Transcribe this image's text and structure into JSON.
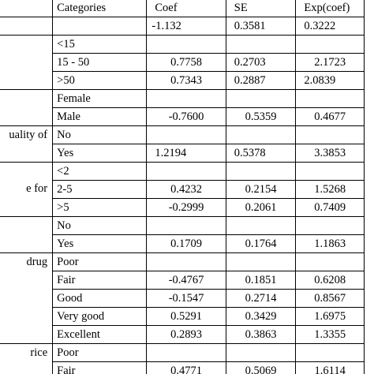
{
  "header": {
    "categories": "Categories",
    "coef": "Coef",
    "se": "SE",
    "exp_coef": "Exp(coef)"
  },
  "intercept": {
    "coef": "-1.132",
    "se": "0.3581",
    "exp": "0.3222"
  },
  "age_group": {
    "rows": [
      {
        "category": "<15",
        "coef": "",
        "se": "",
        "exp": ""
      },
      {
        "category": "15 - 50",
        "coef": "0.7758",
        "se": "0.2703",
        "exp": "2.1723"
      },
      {
        "category": ">50",
        "coef": "0.7343",
        "se": "0.2887",
        "exp": "2.0839"
      }
    ]
  },
  "sex": {
    "rows": [
      {
        "category": "Female",
        "coef": "",
        "se": "",
        "exp": ""
      },
      {
        "category": "Male",
        "coef": "-0.7600",
        "se": "0.5359",
        "exp": "0.4677"
      }
    ]
  },
  "quality": {
    "label_line": "uality  of",
    "rows": [
      {
        "category": "No",
        "coef": "",
        "se": "",
        "exp": ""
      },
      {
        "category": "Yes",
        "coef": "1.2194",
        "se": "0.5378",
        "exp": "3.3853"
      }
    ]
  },
  "time_for": {
    "label_line": "e       for",
    "rows": [
      {
        "category": "<2",
        "coef": "",
        "se": "",
        "exp": ""
      },
      {
        "category": "2-5",
        "coef": "0.4232",
        "se": "0.2154",
        "exp": "1.5268"
      },
      {
        "category": ">5",
        "coef": "-0.2999",
        "se": "0.2061",
        "exp": "0.7409"
      }
    ]
  },
  "binary_var": {
    "rows": [
      {
        "category": "No",
        "coef": "",
        "se": "",
        "exp": ""
      },
      {
        "category": "Yes",
        "coef": "0.1709",
        "se": "0.1764",
        "exp": "1.1863"
      }
    ]
  },
  "drug": {
    "label_line": "drug",
    "rows": [
      {
        "category": "Poor",
        "coef": "",
        "se": "",
        "exp": ""
      },
      {
        "category": "Fair",
        "coef": "-0.4767",
        "se": "0.1851",
        "exp": "0.6208"
      },
      {
        "category": "Good",
        "coef": "-0.1547",
        "se": "0.2714",
        "exp": "0.8567"
      },
      {
        "category": "Very good",
        "coef": "0.5291",
        "se": "0.3429",
        "exp": "1.6975"
      },
      {
        "category": "Excellent",
        "coef": "0.2893",
        "se": "0.3863",
        "exp": "1.3355"
      }
    ]
  },
  "price": {
    "label_line": "rice",
    "rows": [
      {
        "category": "Poor",
        "coef": "",
        "se": "",
        "exp": ""
      },
      {
        "category": "Fair",
        "coef": "0.4771",
        "se": "0.5069",
        "exp": "1.6114"
      }
    ]
  }
}
